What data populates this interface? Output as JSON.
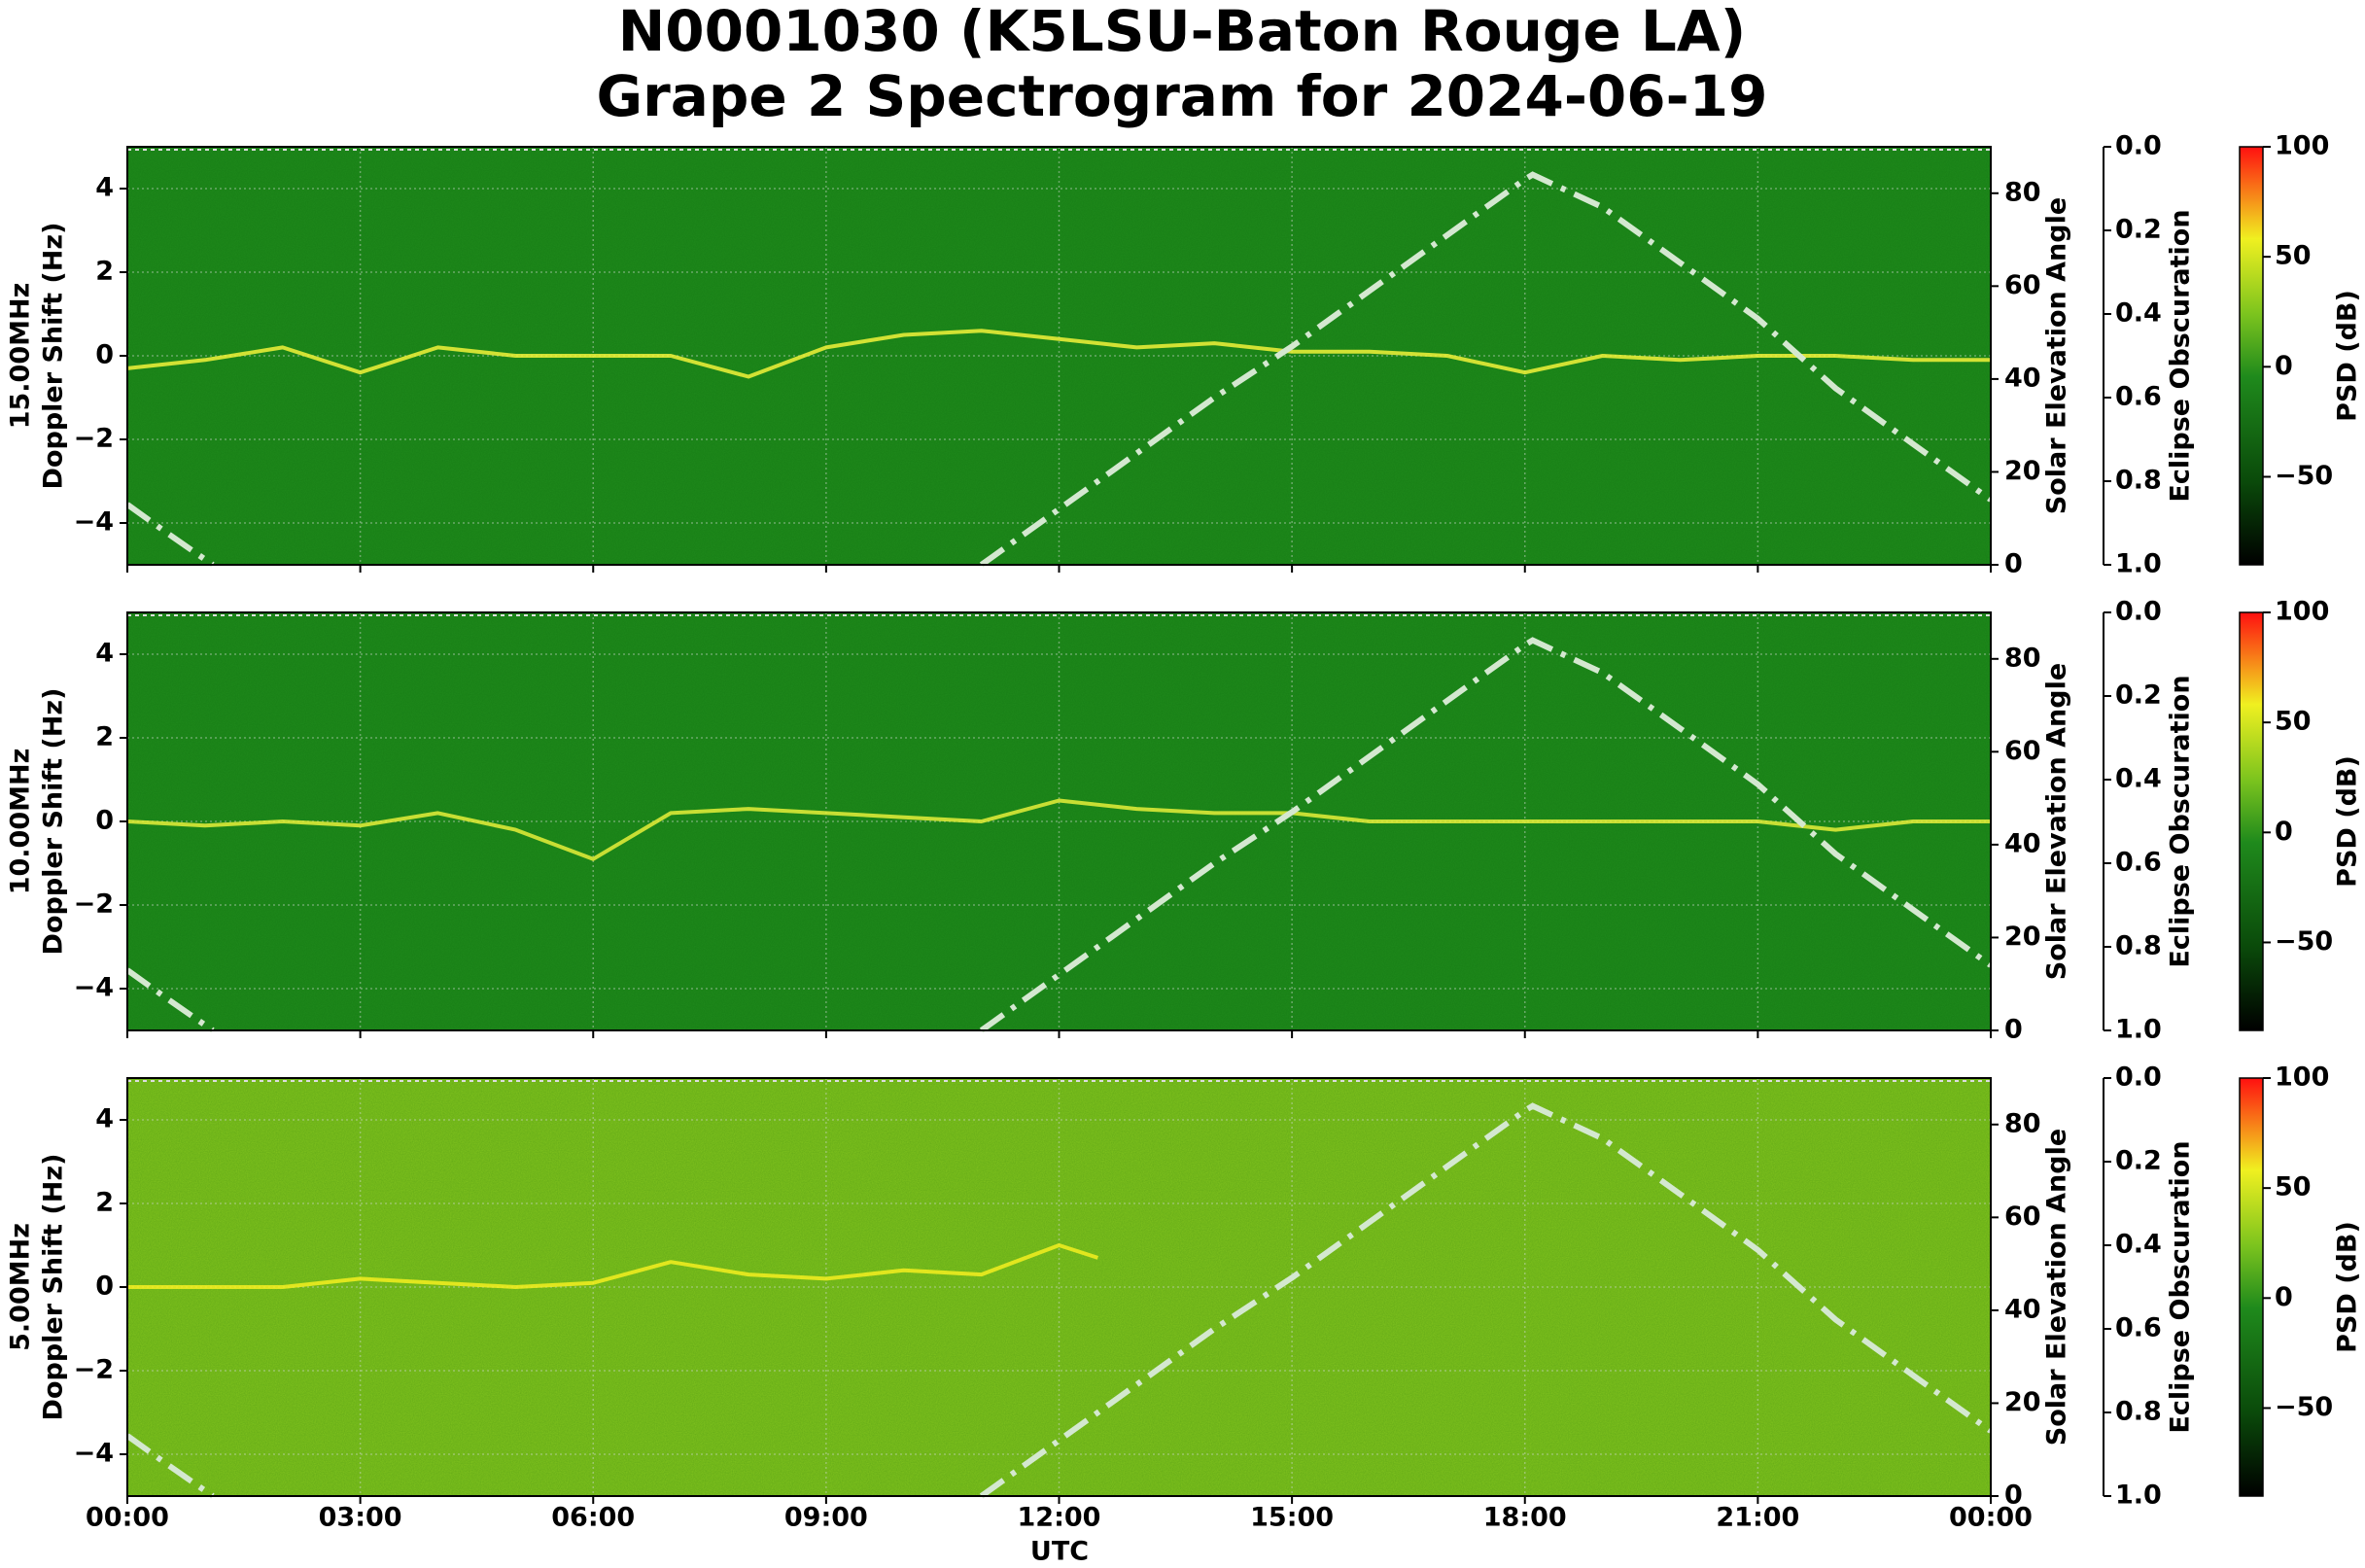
{
  "title": [
    "N0001030 (K5LSU-Baton Rouge LA)",
    "Grape 2 Spectrogram for 2024-06-19"
  ],
  "x_axis": {
    "label": "UTC",
    "lim": [
      0,
      24
    ],
    "ticks": [
      {
        "value": 0,
        "label": "00:00"
      },
      {
        "value": 3,
        "label": "03:00"
      },
      {
        "value": 6,
        "label": "06:00"
      },
      {
        "value": 9,
        "label": "09:00"
      },
      {
        "value": 12,
        "label": "12:00"
      },
      {
        "value": 15,
        "label": "15:00"
      },
      {
        "value": 18,
        "label": "18:00"
      },
      {
        "value": 21,
        "label": "21:00"
      },
      {
        "value": 24,
        "label": "00:00"
      }
    ]
  },
  "chart_data": [
    {
      "type": "spectrogram",
      "ylabel": [
        "15.00MHz",
        "Doppler Shift (Hz)"
      ],
      "background": "#1f8a1c",
      "grid": true,
      "ylim": [
        -5,
        5
      ],
      "yticks": [
        {
          "value": -4,
          "label": "−4"
        },
        {
          "value": -2,
          "label": "−2"
        },
        0,
        2,
        4
      ],
      "y2label": "Solar Elevation Angle",
      "y2lim": [
        0,
        90
      ],
      "y2ticks": [
        0,
        20,
        40,
        60,
        80
      ],
      "obscuration": {
        "label": "Eclipse Obscuration",
        "lim": [
          0,
          1
        ],
        "inverted": true,
        "ticks": [
          {
            "value": 0,
            "label": "0.0"
          },
          0.2,
          0.4,
          0.6,
          0.8,
          {
            "value": 1,
            "label": "1.0"
          }
        ]
      },
      "colorbar": {
        "label": "PSD (dB)",
        "lim": [
          -90,
          100
        ],
        "ticks": [
          100,
          50,
          0,
          {
            "value": -50,
            "label": "−50"
          }
        ]
      },
      "doppler": {
        "color": "#f2f23a",
        "x": [
          0,
          1,
          2,
          3,
          4,
          5,
          6,
          7,
          8,
          9,
          10,
          11,
          12,
          13,
          14,
          15,
          16,
          17,
          18,
          19,
          20,
          21,
          22,
          23,
          24
        ],
        "values": [
          -0.3,
          -0.1,
          0.2,
          -0.4,
          0.2,
          0,
          0,
          0,
          -0.5,
          0.2,
          0.5,
          0.6,
          0.4,
          0.2,
          0.3,
          0.1,
          0.1,
          0,
          -0.4,
          0,
          -0.1,
          0,
          0,
          -0.1,
          -0.1
        ]
      },
      "solar_elevation": {
        "color": "#d4e8d0",
        "axis": "y2",
        "x": [
          0,
          0.5,
          1.1,
          6,
          11,
          12,
          13,
          14,
          15,
          16,
          17,
          18,
          18.1,
          19,
          20,
          21,
          22,
          23,
          24
        ],
        "values": [
          13,
          7,
          0,
          null,
          0,
          12,
          24,
          36,
          47,
          59,
          71,
          83,
          84,
          77,
          65,
          53,
          38,
          26,
          14
        ]
      }
    },
    {
      "type": "spectrogram",
      "ylabel": [
        "10.00MHz",
        "Doppler Shift (Hz)"
      ],
      "background": "#1f8a1c",
      "grid": true,
      "ylim": [
        -5,
        5
      ],
      "yticks": [
        {
          "value": -4,
          "label": "−4"
        },
        {
          "value": -2,
          "label": "−2"
        },
        0,
        2,
        4
      ],
      "y2label": "Solar Elevation Angle",
      "y2lim": [
        0,
        90
      ],
      "y2ticks": [
        0,
        20,
        40,
        60,
        80
      ],
      "obscuration": {
        "label": "Eclipse Obscuration",
        "lim": [
          0,
          1
        ],
        "inverted": true,
        "ticks": [
          {
            "value": 0,
            "label": "0.0"
          },
          0.2,
          0.4,
          0.6,
          0.8,
          {
            "value": 1,
            "label": "1.0"
          }
        ]
      },
      "colorbar": {
        "label": "PSD (dB)",
        "lim": [
          -90,
          100
        ],
        "ticks": [
          100,
          50,
          0,
          {
            "value": -50,
            "label": "−50"
          }
        ]
      },
      "doppler": {
        "color": "#e6ee3a",
        "x": [
          0,
          1,
          2,
          3,
          4,
          5,
          6,
          7,
          8,
          9,
          10,
          11,
          12,
          13,
          14,
          15,
          16,
          17,
          18,
          19,
          20,
          21,
          22,
          23,
          24
        ],
        "values": [
          0,
          -0.1,
          0,
          -0.1,
          0.2,
          -0.2,
          -0.9,
          0.2,
          0.3,
          0.2,
          0.1,
          0,
          0.5,
          0.3,
          0.2,
          0.2,
          0,
          0,
          0,
          0,
          0,
          0,
          -0.2,
          0,
          0
        ]
      },
      "solar_elevation": {
        "color": "#d4e8d0",
        "axis": "y2",
        "x": [
          0,
          0.5,
          1.1,
          6,
          11,
          12,
          13,
          14,
          15,
          16,
          17,
          18,
          18.1,
          19,
          20,
          21,
          22,
          23,
          24
        ],
        "values": [
          13,
          7,
          0,
          null,
          0,
          12,
          24,
          36,
          47,
          59,
          71,
          83,
          84,
          77,
          65,
          53,
          38,
          26,
          14
        ]
      }
    },
    {
      "type": "spectrogram",
      "ylabel": [
        "5.00MHz",
        "Doppler Shift (Hz)"
      ],
      "background": "#82c41e",
      "grid": true,
      "ylim": [
        -5,
        5
      ],
      "yticks": [
        {
          "value": -4,
          "label": "−4"
        },
        {
          "value": -2,
          "label": "−2"
        },
        0,
        2,
        4
      ],
      "y2label": "Solar Elevation Angle",
      "y2lim": [
        0,
        90
      ],
      "y2ticks": [
        0,
        20,
        40,
        60,
        80
      ],
      "obscuration": {
        "label": "Eclipse Obscuration",
        "lim": [
          0,
          1
        ],
        "inverted": true,
        "ticks": [
          {
            "value": 0,
            "label": "0.0"
          },
          0.2,
          0.4,
          0.6,
          0.8,
          {
            "value": 1,
            "label": "1.0"
          }
        ]
      },
      "colorbar": {
        "label": "PSD (dB)",
        "lim": [
          -90,
          100
        ],
        "ticks": [
          100,
          50,
          0,
          {
            "value": -50,
            "label": "−50"
          }
        ]
      },
      "doppler": {
        "color": "#f5ee20",
        "x": [
          0,
          1,
          2,
          3,
          4,
          5,
          6,
          7,
          8,
          9,
          10,
          11,
          12,
          12.5,
          13
        ],
        "values": [
          0,
          0,
          0,
          0.2,
          0.1,
          0,
          0.1,
          0.6,
          0.3,
          0.2,
          0.4,
          0.3,
          1.0,
          0.7,
          null
        ]
      },
      "solar_elevation": {
        "color": "#d4e8d0",
        "axis": "y2",
        "x": [
          0,
          0.5,
          1.1,
          6,
          11,
          12,
          13,
          14,
          15,
          16,
          17,
          18,
          18.1,
          19,
          20,
          21,
          22,
          23,
          24
        ],
        "values": [
          13,
          7,
          0,
          null,
          0,
          12,
          24,
          36,
          47,
          59,
          71,
          83,
          84,
          77,
          65,
          53,
          38,
          26,
          14
        ]
      }
    }
  ]
}
